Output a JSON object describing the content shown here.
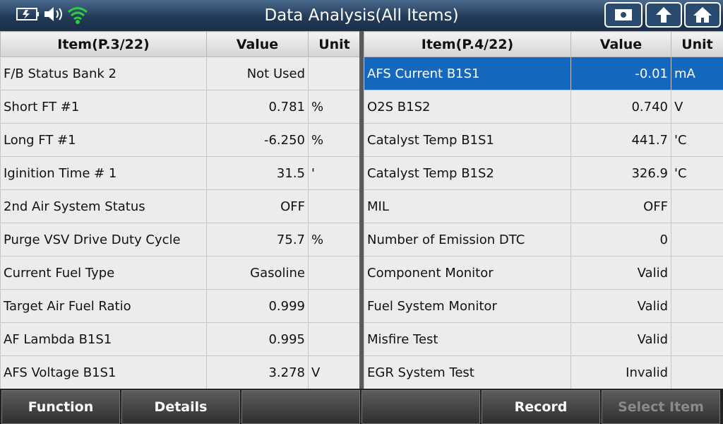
{
  "header": {
    "title": "Data Analysis(All Items)"
  },
  "tables": [
    {
      "columns": [
        "Item(P.3/22)",
        "Value",
        "Unit"
      ],
      "rows": [
        {
          "item": "F/B Status Bank 2",
          "value": "Not Used"
        },
        {
          "item": "Short FT #1",
          "value": "0.781",
          "unit": "%"
        },
        {
          "item": "Long FT #1",
          "value": "-6.250",
          "unit": "%"
        },
        {
          "item": "Iginition Time # 1",
          "value": "31.5",
          "unit": "'"
        },
        {
          "item": "2nd Air System Status",
          "value": "OFF"
        },
        {
          "item": "Purge VSV Drive Duty Cycle",
          "value": "75.7",
          "unit": "%"
        },
        {
          "item": "Current Fuel Type",
          "value": "Gasoline"
        },
        {
          "item": "Target Air Fuel Ratio",
          "value": "0.999"
        },
        {
          "item": "AF Lambda B1S1",
          "value": "0.995"
        },
        {
          "item": "AFS Voltage B1S1",
          "value": "3.278",
          "unit": "V"
        }
      ]
    },
    {
      "columns": [
        "Item(P.4/22)",
        "Value",
        "Unit"
      ],
      "rows": [
        {
          "item": "AFS Current B1S1",
          "value": "-0.01",
          "unit": "mA",
          "selected": true
        },
        {
          "item": "O2S B1S2",
          "value": "0.740",
          "unit": "V"
        },
        {
          "item": "Catalyst Temp B1S1",
          "value": "441.7",
          "unit": "'C"
        },
        {
          "item": "Catalyst Temp B1S2",
          "value": "326.9",
          "unit": "'C"
        },
        {
          "item": "MIL",
          "value": "OFF"
        },
        {
          "item": "Number of Emission DTC",
          "value": "0"
        },
        {
          "item": "Component Monitor",
          "value": "Valid"
        },
        {
          "item": "Fuel System Monitor",
          "value": "Valid"
        },
        {
          "item": "Misfire Test",
          "value": "Valid"
        },
        {
          "item": "EGR System Test",
          "value": "Invalid"
        }
      ]
    }
  ],
  "footer": {
    "buttons": [
      {
        "label": "Function"
      },
      {
        "label": "Details"
      },
      {
        "label": "Record"
      },
      {
        "label": "Select Item",
        "disabled": true
      }
    ]
  }
}
